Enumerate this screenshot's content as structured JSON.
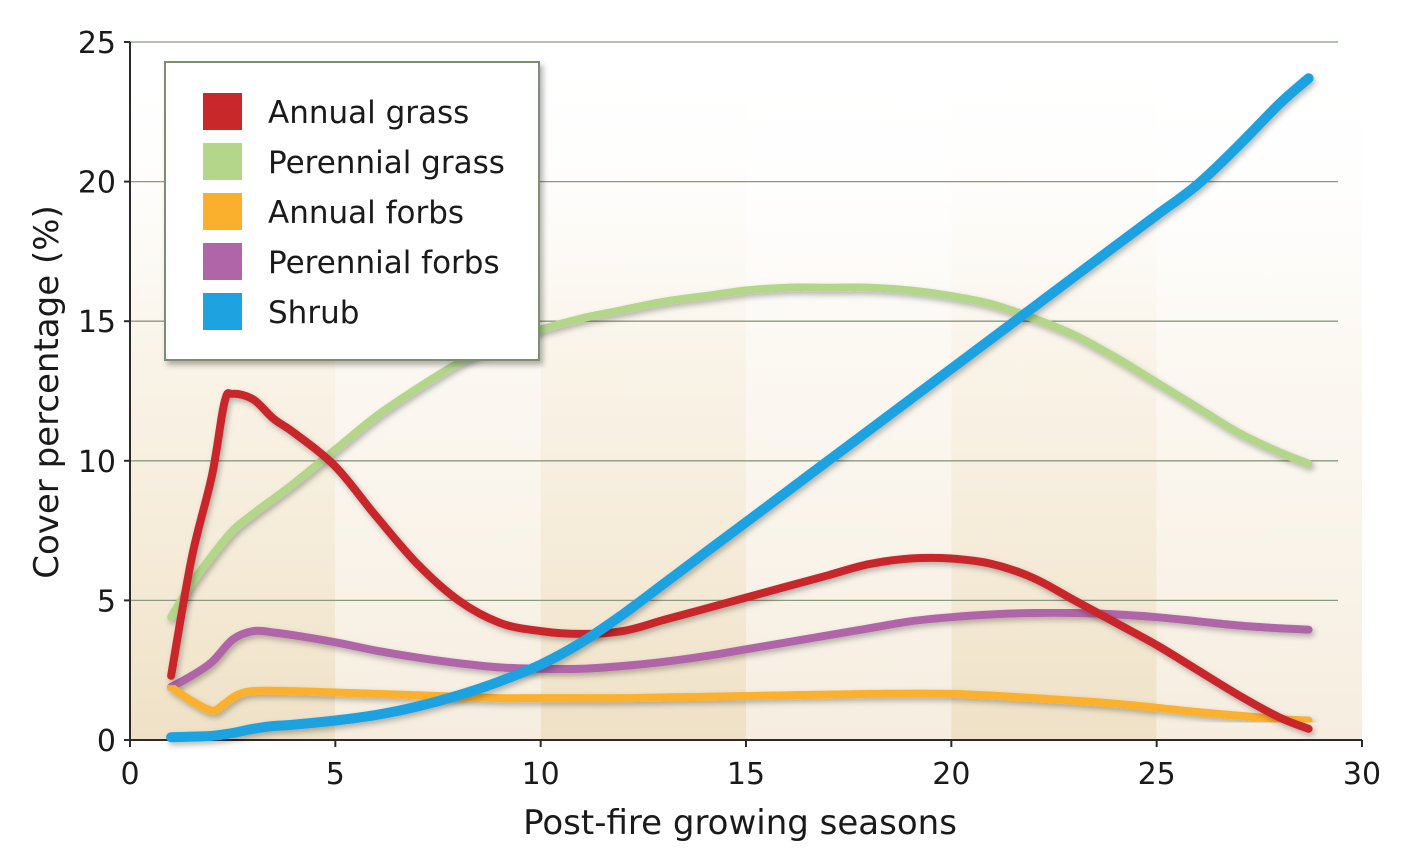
{
  "chart_data": {
    "type": "line",
    "xlabel": "Post-fire growing seasons",
    "ylabel": "Cover percentage (%)",
    "xlim": [
      0,
      30
    ],
    "ylim": [
      0,
      25
    ],
    "x_ticks": [
      0,
      5,
      10,
      15,
      20,
      25,
      30
    ],
    "y_ticks": [
      0,
      5,
      10,
      15,
      20,
      25
    ],
    "grid": "horizontal",
    "legend_position": "top-left",
    "background_bands": "alternating tan vertical bands every 5 seasons",
    "series": [
      {
        "name": "Annual grass",
        "color": "#c8282a",
        "x": [
          1,
          1.5,
          2,
          2.3,
          2.5,
          3,
          3.5,
          4,
          5,
          6,
          7,
          8,
          9,
          10,
          11,
          12,
          13,
          14,
          15,
          16,
          17,
          18,
          19,
          20,
          21,
          22,
          23,
          24,
          25,
          26,
          27,
          28,
          28.7
        ],
        "y": [
          2.3,
          6.5,
          9.5,
          12.1,
          12.4,
          12.2,
          11.5,
          11.0,
          9.8,
          8.0,
          6.3,
          5.0,
          4.2,
          3.9,
          3.8,
          3.9,
          4.3,
          4.7,
          5.1,
          5.5,
          5.9,
          6.3,
          6.5,
          6.5,
          6.3,
          5.8,
          5.0,
          4.2,
          3.4,
          2.5,
          1.6,
          0.8,
          0.4
        ]
      },
      {
        "name": "Perennial grass",
        "color": "#b3d68b",
        "x": [
          1,
          1.5,
          2,
          2.5,
          3,
          4,
          5,
          6,
          7,
          8,
          9,
          10,
          11,
          12,
          13,
          14,
          15,
          16,
          17,
          18,
          19,
          20,
          21,
          22,
          23,
          24,
          25,
          26,
          27,
          28,
          28.7
        ],
        "y": [
          4.4,
          5.6,
          6.6,
          7.5,
          8.1,
          9.2,
          10.4,
          11.6,
          12.6,
          13.5,
          14.2,
          14.7,
          15.1,
          15.4,
          15.7,
          15.9,
          16.1,
          16.2,
          16.2,
          16.2,
          16.1,
          15.9,
          15.6,
          15.1,
          14.5,
          13.7,
          12.8,
          11.9,
          11.0,
          10.3,
          9.9
        ]
      },
      {
        "name": "Annual forbs",
        "color": "#fbb02d",
        "x": [
          1,
          1.5,
          2,
          2.3,
          2.6,
          3,
          4,
          5,
          6,
          7,
          8,
          9,
          10,
          12,
          14,
          16,
          18,
          20,
          22,
          24,
          26,
          28,
          28.7
        ],
        "y": [
          1.9,
          1.4,
          1.05,
          1.3,
          1.6,
          1.75,
          1.75,
          1.7,
          1.65,
          1.6,
          1.55,
          1.5,
          1.5,
          1.5,
          1.55,
          1.6,
          1.65,
          1.65,
          1.5,
          1.3,
          1.0,
          0.75,
          0.7
        ]
      },
      {
        "name": "Perennial forbs",
        "color": "#b065a8",
        "x": [
          1,
          1.5,
          2,
          2.5,
          3,
          3.5,
          4,
          5,
          6,
          7,
          8,
          9,
          10,
          11,
          12,
          13,
          14,
          15,
          16,
          17,
          18,
          19,
          20,
          21,
          22,
          23,
          24,
          25,
          26,
          27,
          28,
          28.7
        ],
        "y": [
          1.9,
          2.3,
          2.8,
          3.6,
          3.9,
          3.85,
          3.75,
          3.5,
          3.2,
          2.95,
          2.75,
          2.6,
          2.55,
          2.55,
          2.65,
          2.8,
          3.0,
          3.25,
          3.5,
          3.75,
          4.0,
          4.25,
          4.4,
          4.5,
          4.55,
          4.55,
          4.5,
          4.4,
          4.25,
          4.1,
          4.0,
          3.95
        ]
      },
      {
        "name": "Shrub",
        "color": "#1ea2e0",
        "x": [
          1,
          1.5,
          2,
          2.5,
          3,
          3.5,
          4,
          5,
          6,
          7,
          8,
          9,
          10,
          11,
          12,
          13,
          14,
          15,
          16,
          17,
          18,
          19,
          20,
          21,
          22,
          23,
          24,
          25,
          26,
          27,
          28,
          28.7
        ],
        "y": [
          0.1,
          0.12,
          0.15,
          0.25,
          0.4,
          0.5,
          0.55,
          0.7,
          0.9,
          1.2,
          1.6,
          2.1,
          2.7,
          3.5,
          4.5,
          5.6,
          6.7,
          7.8,
          8.9,
          10.0,
          11.1,
          12.2,
          13.3,
          14.4,
          15.5,
          16.6,
          17.7,
          18.8,
          19.9,
          21.3,
          22.8,
          23.7
        ]
      }
    ]
  }
}
